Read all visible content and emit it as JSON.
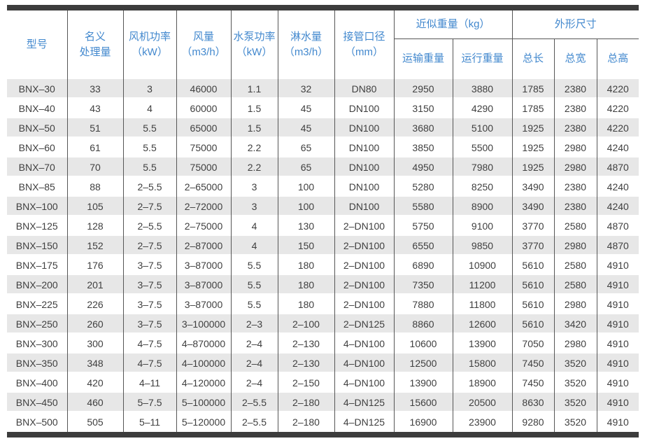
{
  "colors": {
    "accent_blue": "#4288ce",
    "stripe_gray": "#e7e7e7",
    "bar_dark": "#3c3c3c",
    "grid_line": "#565656",
    "body_text": "#3f3f3f"
  },
  "table": {
    "column_keys": [
      "model",
      "nominal_capacity",
      "fan_power",
      "air_volume",
      "pump_power",
      "spray_water",
      "pipe_diameter",
      "transport_weight",
      "operating_weight",
      "total_length",
      "total_width",
      "total_height"
    ],
    "headers": {
      "model": "型号",
      "nominal_capacity": [
        "名义",
        "处理量"
      ],
      "fan_power": [
        "风机功率",
        "（kW）"
      ],
      "air_volume": [
        "风量",
        "（m3/h）"
      ],
      "pump_power": [
        "水泵功率",
        "（kW）"
      ],
      "spray_water": [
        "淋水量",
        "（m3/h）"
      ],
      "pipe_diameter": [
        "接管口径",
        "（mm）"
      ],
      "weight_group": "近似重量（kg）",
      "transport_weight": "运输重量",
      "operating_weight": "运行重量",
      "dims_group": "外形尺寸",
      "total_length": "总长",
      "total_width": "总宽",
      "total_height": "总高"
    },
    "rows": [
      [
        "BNX–30",
        "33",
        "3",
        "46000",
        "1.1",
        "32",
        "DN80",
        "2950",
        "3880",
        "1785",
        "2380",
        "4220"
      ],
      [
        "BNX–40",
        "43",
        "4",
        "60000",
        "1.5",
        "45",
        "DN100",
        "3150",
        "4290",
        "1785",
        "2380",
        "4220"
      ],
      [
        "BNX–50",
        "51",
        "5.5",
        "65000",
        "1.5",
        "45",
        "DN100",
        "3680",
        "5100",
        "1925",
        "2380",
        "4220"
      ],
      [
        "BNX–60",
        "61",
        "5.5",
        "75000",
        "2.2",
        "65",
        "DN100",
        "3850",
        "5500",
        "1925",
        "2980",
        "4240"
      ],
      [
        "BNX–70",
        "70",
        "5.5",
        "75000",
        "2.2",
        "65",
        "DN100",
        "4950",
        "7980",
        "1925",
        "2980",
        "4870"
      ],
      [
        "BNX–85",
        "88",
        "2–5.5",
        "2–65000",
        "3",
        "100",
        "DN100",
        "5280",
        "8250",
        "3490",
        "2380",
        "4240"
      ],
      [
        "BNX–100",
        "105",
        "2–7.5",
        "2–72000",
        "3",
        "100",
        "DN100",
        "5580",
        "8900",
        "3490",
        "2380",
        "4240"
      ],
      [
        "BNX–125",
        "128",
        "2–5.5",
        "2–75000",
        "4",
        "130",
        "2–DN100",
        "5750",
        "9100",
        "3770",
        "2580",
        "4870"
      ],
      [
        "BNX–150",
        "152",
        "2–7.5",
        "2–87000",
        "4",
        "150",
        "2–DN100",
        "6550",
        "9850",
        "3770",
        "2980",
        "4870"
      ],
      [
        "BNX–175",
        "176",
        "3–7.5",
        "3–87000",
        "5.5",
        "180",
        "2–DN100",
        "6890",
        "10900",
        "5610",
        "2580",
        "4910"
      ],
      [
        "BNX–200",
        "201",
        "3–7.5",
        "3–87000",
        "5.5",
        "180",
        "2–DN100",
        "7350",
        "11200",
        "5610",
        "2580",
        "4910"
      ],
      [
        "BNX–225",
        "226",
        "3–7.5",
        "3–87000",
        "5.5",
        "180",
        "2–DN100",
        "7880",
        "11800",
        "5610",
        "2980",
        "4910"
      ],
      [
        "BNX–250",
        "260",
        "3–7.5",
        "3–100000",
        "2–3",
        "2–100",
        "2–DN125",
        "8860",
        "12600",
        "5610",
        "3420",
        "4910"
      ],
      [
        "BNX–300",
        "300",
        "4–7.5",
        "4–870000",
        "2–4",
        "2–130",
        "4–DN100",
        "10600",
        "13900",
        "7050",
        "2980",
        "4910"
      ],
      [
        "BNX–350",
        "348",
        "4–7.5",
        "4–100000",
        "2–4",
        "2–130",
        "4–DN100",
        "12500",
        "15800",
        "7450",
        "3520",
        "4910"
      ],
      [
        "BNX–400",
        "420",
        "4–11",
        "4–120000",
        "2–4",
        "2–150",
        "4–DN100",
        "13900",
        "18900",
        "7450",
        "3520",
        "4910"
      ],
      [
        "BNX–450",
        "460",
        "5–7.5",
        "5–100000",
        "2–5.5",
        "2–180",
        "4–DN125",
        "15600",
        "20500",
        "8630",
        "3520",
        "4910"
      ],
      [
        "BNX–500",
        "505",
        "5–11",
        "5–120000",
        "2–5.5",
        "2–180",
        "4–DN125",
        "16900",
        "23900",
        "9280",
        "3520",
        "4910"
      ]
    ]
  }
}
